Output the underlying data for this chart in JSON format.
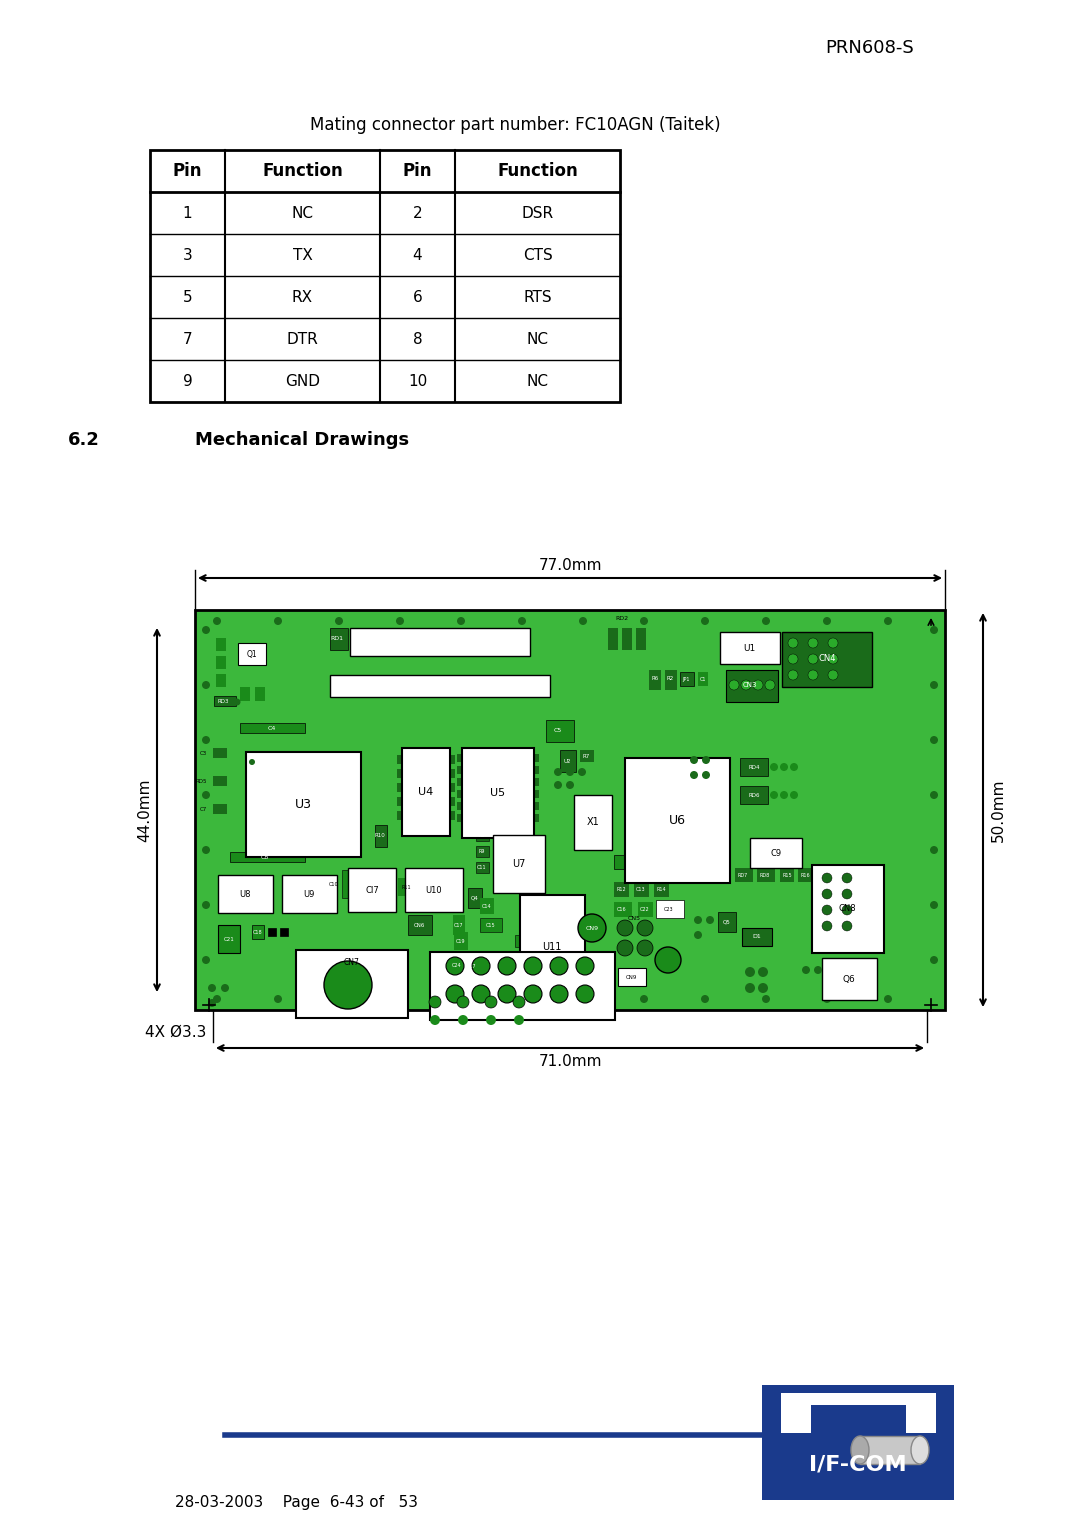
{
  "header_text": "PRN608-S",
  "subtitle": "Mating connector part number: FC10AGN (Taitek)",
  "table_headers": [
    "Pin",
    "Function",
    "Pin",
    "Function"
  ],
  "table_rows": [
    [
      "1",
      "NC",
      "2",
      "DSR"
    ],
    [
      "3",
      "TX",
      "4",
      "CTS"
    ],
    [
      "5",
      "RX",
      "6",
      "RTS"
    ],
    [
      "7",
      "DTR",
      "8",
      "NC"
    ],
    [
      "9",
      "GND",
      "10",
      "NC"
    ]
  ],
  "section_number": "6.2",
  "section_title": "Mechanical Drawings",
  "dim_top": "77.0mm",
  "dim_bottom": "71.0mm",
  "dim_left": "44.0mm",
  "dim_right": "50.0mm",
  "dim_corner": "4X Ø3.3",
  "footer_text": "28-03-2003    Page  6-43 of   53",
  "bg_color": "#ffffff",
  "text_color": "#000000",
  "green_pcb": "#3cb83c",
  "green_dark": "#1a6b1a",
  "green_comp": "#228B22",
  "blue_color": "#1a3a8c",
  "logo_blue": "#1a3a8c"
}
